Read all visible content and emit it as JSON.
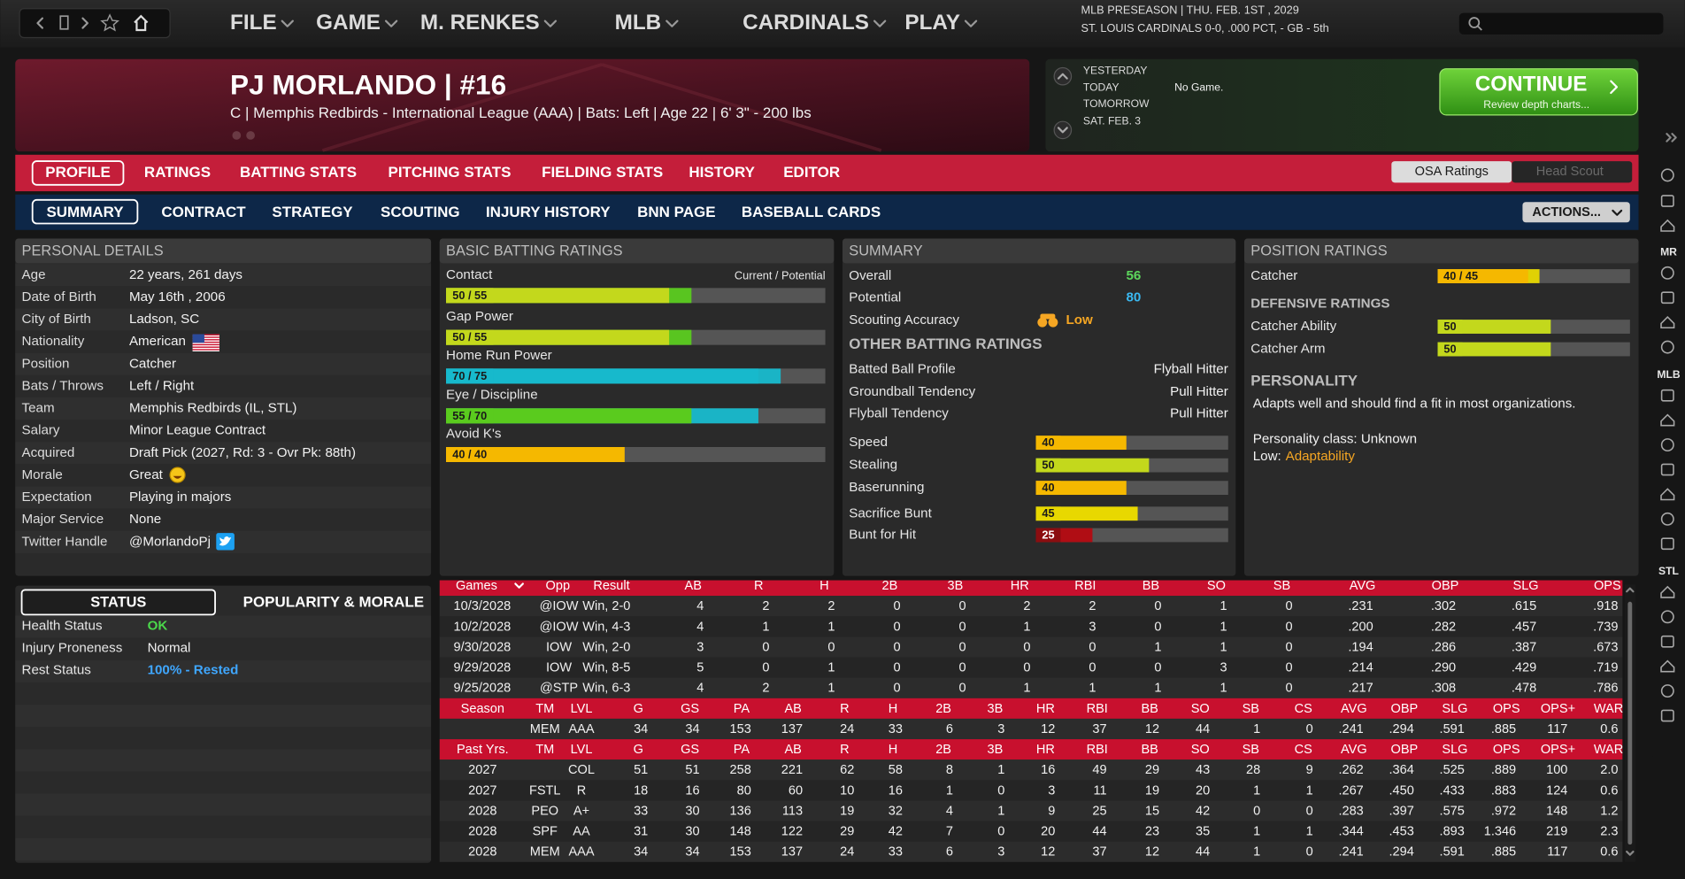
{
  "top_bar": {
    "menu": [
      "FILE",
      "GAME",
      "M. RENKES",
      "MLB",
      "CARDINALS",
      "PLAY"
    ],
    "status": [
      "MLB PRESEASON  |  THU. FEB. 1ST , 2029",
      "ST. LOUIS CARDINALS   0-0, .000 PCT, - GB - 5th"
    ]
  },
  "header": {
    "name": "PJ MORLANDO  |  #16",
    "details": "C | Memphis Redbirds - International League (AAA)  |  Bats: Left  |  Age 22  |  6' 3\" - 200 lbs"
  },
  "schedule": {
    "days": [
      "YESTERDAY",
      "TODAY",
      "TOMORROW",
      "SAT. FEB. 3"
    ],
    "today_game": "No Game.",
    "button": {
      "label": "CONTINUE",
      "sublabel": "Review depth charts..."
    }
  },
  "tabs": {
    "main": [
      "PROFILE",
      "RATINGS",
      "BATTING STATS",
      "PITCHING STATS",
      "FIELDING STATS",
      "HISTORY",
      "EDITOR"
    ],
    "toggle": [
      "OSA Ratings",
      "Head Scout"
    ],
    "sub": [
      "SUMMARY",
      "CONTRACT",
      "STRATEGY",
      "SCOUTING",
      "INJURY HISTORY",
      "BNN PAGE",
      "BASEBALL CARDS"
    ],
    "actions": "ACTIONS..."
  },
  "personal_details": {
    "title": "PERSONAL DETAILS",
    "rows": [
      [
        "Age",
        "22 years, 261 days"
      ],
      [
        "Date of Birth",
        "May 16th , 2006"
      ],
      [
        "City of Birth",
        "Ladson, SC"
      ],
      [
        "Nationality",
        "American"
      ],
      [
        "Position",
        "Catcher"
      ],
      [
        "Bats / Throws",
        "Left / Right"
      ],
      [
        "Team",
        "Memphis Redbirds (IL, STL)"
      ],
      [
        "Salary",
        "Minor League Contract"
      ],
      [
        "Acquired",
        "Draft Pick (2027, Rd: 3 - Ovr Pk: 88th)"
      ],
      [
        "Morale",
        "Great"
      ],
      [
        "Expectation",
        "Playing in majors"
      ],
      [
        "Major Service",
        "None"
      ],
      [
        "Twitter Handle",
        "@MorlandoPj"
      ]
    ]
  },
  "batting_ratings": {
    "title": "BASIC BATTING RATINGS",
    "legend": "Current / Potential",
    "ratings": [
      {
        "name": "Contact",
        "current": 50,
        "potential": 55,
        "label": "50 / 55"
      },
      {
        "name": "Gap Power",
        "current": 50,
        "potential": 55,
        "label": "50 / 55"
      },
      {
        "name": "Home Run Power",
        "current": 70,
        "potential": 75,
        "label": "70 / 75"
      },
      {
        "name": "Eye / Discipline",
        "current": 55,
        "potential": 70,
        "label": "55 / 70"
      },
      {
        "name": "Avoid K's",
        "current": 40,
        "potential": 40,
        "label": "40 / 40"
      }
    ]
  },
  "summary": {
    "title": "SUMMARY",
    "overall": {
      "label": "Overall",
      "value": 56
    },
    "potential": {
      "label": "Potential",
      "value": 80
    },
    "scouting": {
      "label": "Scouting Accuracy",
      "value": "Low"
    },
    "other_title": "OTHER BATTING RATINGS",
    "tendencies": [
      [
        "Batted Ball Profile",
        "Flyball Hitter"
      ],
      [
        "Groundball Tendency",
        "Pull Hitter"
      ],
      [
        "Flyball Tendency",
        "Pull Hitter"
      ]
    ],
    "running": [
      {
        "name": "Speed",
        "value": 40
      },
      {
        "name": "Stealing",
        "value": 50
      },
      {
        "name": "Baserunning",
        "value": 40
      },
      {
        "name": "Sacrifice Bunt",
        "value": 45
      },
      {
        "name": "Bunt for Hit",
        "value": 25
      }
    ]
  },
  "position_ratings": {
    "title": "POSITION RATINGS",
    "positions": [
      {
        "name": "Catcher",
        "current": 40,
        "potential": 45,
        "label": "40 / 45"
      }
    ],
    "defensive_title": "DEFENSIVE RATINGS",
    "defensive": [
      {
        "name": "Catcher Ability",
        "value": 50
      },
      {
        "name": "Catcher Arm",
        "value": 50
      }
    ],
    "personality_title": "PERSONALITY",
    "personality_text": "Adapts well and should find a fit in most organizations.",
    "personality_class": "Personality class: Unknown",
    "low_label": "Low:",
    "low_value": "Adaptability"
  },
  "status": {
    "tabs": [
      "STATUS",
      "POPULARITY & MORALE"
    ],
    "rows": [
      [
        "Health Status",
        "OK"
      ],
      [
        "Injury Proneness",
        "Normal"
      ],
      [
        "Rest Status",
        "100% - Rested"
      ]
    ]
  },
  "stats": {
    "game_header": [
      "Games",
      "Opp",
      "Result",
      "AB",
      "R",
      "H",
      "2B",
      "3B",
      "HR",
      "RBI",
      "BB",
      "SO",
      "SB",
      "AVG",
      "OBP",
      "SLG",
      "OPS"
    ],
    "games": [
      [
        "10/3/2028",
        "@IOW",
        "Win, 2-0",
        "4",
        "2",
        "2",
        "0",
        "0",
        "2",
        "2",
        "0",
        "1",
        "0",
        ".231",
        ".302",
        ".615",
        ".918"
      ],
      [
        "10/2/2028",
        "@IOW",
        "Win, 4-3",
        "4",
        "1",
        "1",
        "0",
        "0",
        "1",
        "3",
        "0",
        "1",
        "0",
        ".200",
        ".282",
        ".457",
        ".739"
      ],
      [
        "9/30/2028",
        "IOW",
        "Win, 2-0",
        "3",
        "0",
        "0",
        "0",
        "0",
        "0",
        "0",
        "1",
        "1",
        "0",
        ".194",
        ".286",
        ".387",
        ".673"
      ],
      [
        "9/29/2028",
        "IOW",
        "Win, 8-5",
        "5",
        "0",
        "1",
        "0",
        "0",
        "0",
        "0",
        "0",
        "3",
        "0",
        ".214",
        ".290",
        ".429",
        ".719"
      ],
      [
        "9/25/2028",
        "@STP",
        "Win, 6-3",
        "4",
        "2",
        "1",
        "0",
        "0",
        "1",
        "1",
        "1",
        "1",
        "0",
        ".217",
        ".308",
        ".478",
        ".786"
      ]
    ],
    "season_header": [
      "Season",
      "TM",
      "LVL",
      "G",
      "GS",
      "PA",
      "AB",
      "R",
      "H",
      "2B",
      "3B",
      "HR",
      "RBI",
      "BB",
      "SO",
      "SB",
      "CS",
      "AVG",
      "OBP",
      "SLG",
      "OPS",
      "OPS+",
      "WAR"
    ],
    "season": [
      [
        null,
        "MEM",
        "AAA",
        "34",
        "34",
        "153",
        "137",
        "24",
        "33",
        "6",
        "3",
        "12",
        "37",
        "12",
        "44",
        "1",
        "0",
        ".241",
        ".294",
        ".591",
        ".885",
        "117",
        "0.6"
      ]
    ],
    "past_header": [
      "Past Yrs.",
      "TM",
      "LVL",
      "G",
      "GS",
      "PA",
      "AB",
      "R",
      "H",
      "2B",
      "3B",
      "HR",
      "RBI",
      "BB",
      "SO",
      "SB",
      "CS",
      "AVG",
      "OBP",
      "SLG",
      "OPS",
      "OPS+",
      "WAR"
    ],
    "past": [
      [
        "2027",
        null,
        "COL",
        "51",
        "51",
        "258",
        "221",
        "62",
        "58",
        "8",
        "1",
        "16",
        "49",
        "29",
        "43",
        "28",
        "9",
        ".262",
        ".364",
        ".525",
        ".889",
        "100",
        "2.0"
      ],
      [
        "2027",
        "FSTL",
        "R",
        "18",
        "16",
        "80",
        "60",
        "10",
        "16",
        "1",
        "0",
        "3",
        "11",
        "19",
        "20",
        "1",
        "1",
        ".267",
        ".450",
        ".433",
        ".883",
        "124",
        "0.6"
      ],
      [
        "2028",
        "PEO",
        "A+",
        "33",
        "30",
        "136",
        "113",
        "19",
        "32",
        "4",
        "1",
        "9",
        "25",
        "15",
        "42",
        "0",
        "0",
        ".283",
        ".397",
        ".575",
        ".972",
        "148",
        "1.2"
      ],
      [
        "2028",
        "SPF",
        "AA",
        "31",
        "30",
        "148",
        "122",
        "29",
        "42",
        "7",
        "0",
        "20",
        "44",
        "23",
        "35",
        "1",
        "1",
        ".344",
        ".453",
        ".893",
        "1.346",
        "219",
        "2.3"
      ],
      [
        "2028",
        "MEM",
        "AAA",
        "34",
        "34",
        "153",
        "137",
        "24",
        "33",
        "6",
        "3",
        "12",
        "37",
        "12",
        "44",
        "1",
        "0",
        ".241",
        ".294",
        ".591",
        ".885",
        "117",
        "0.6"
      ]
    ]
  },
  "sidebar": [
    "MR",
    "MLB",
    "STL"
  ]
}
